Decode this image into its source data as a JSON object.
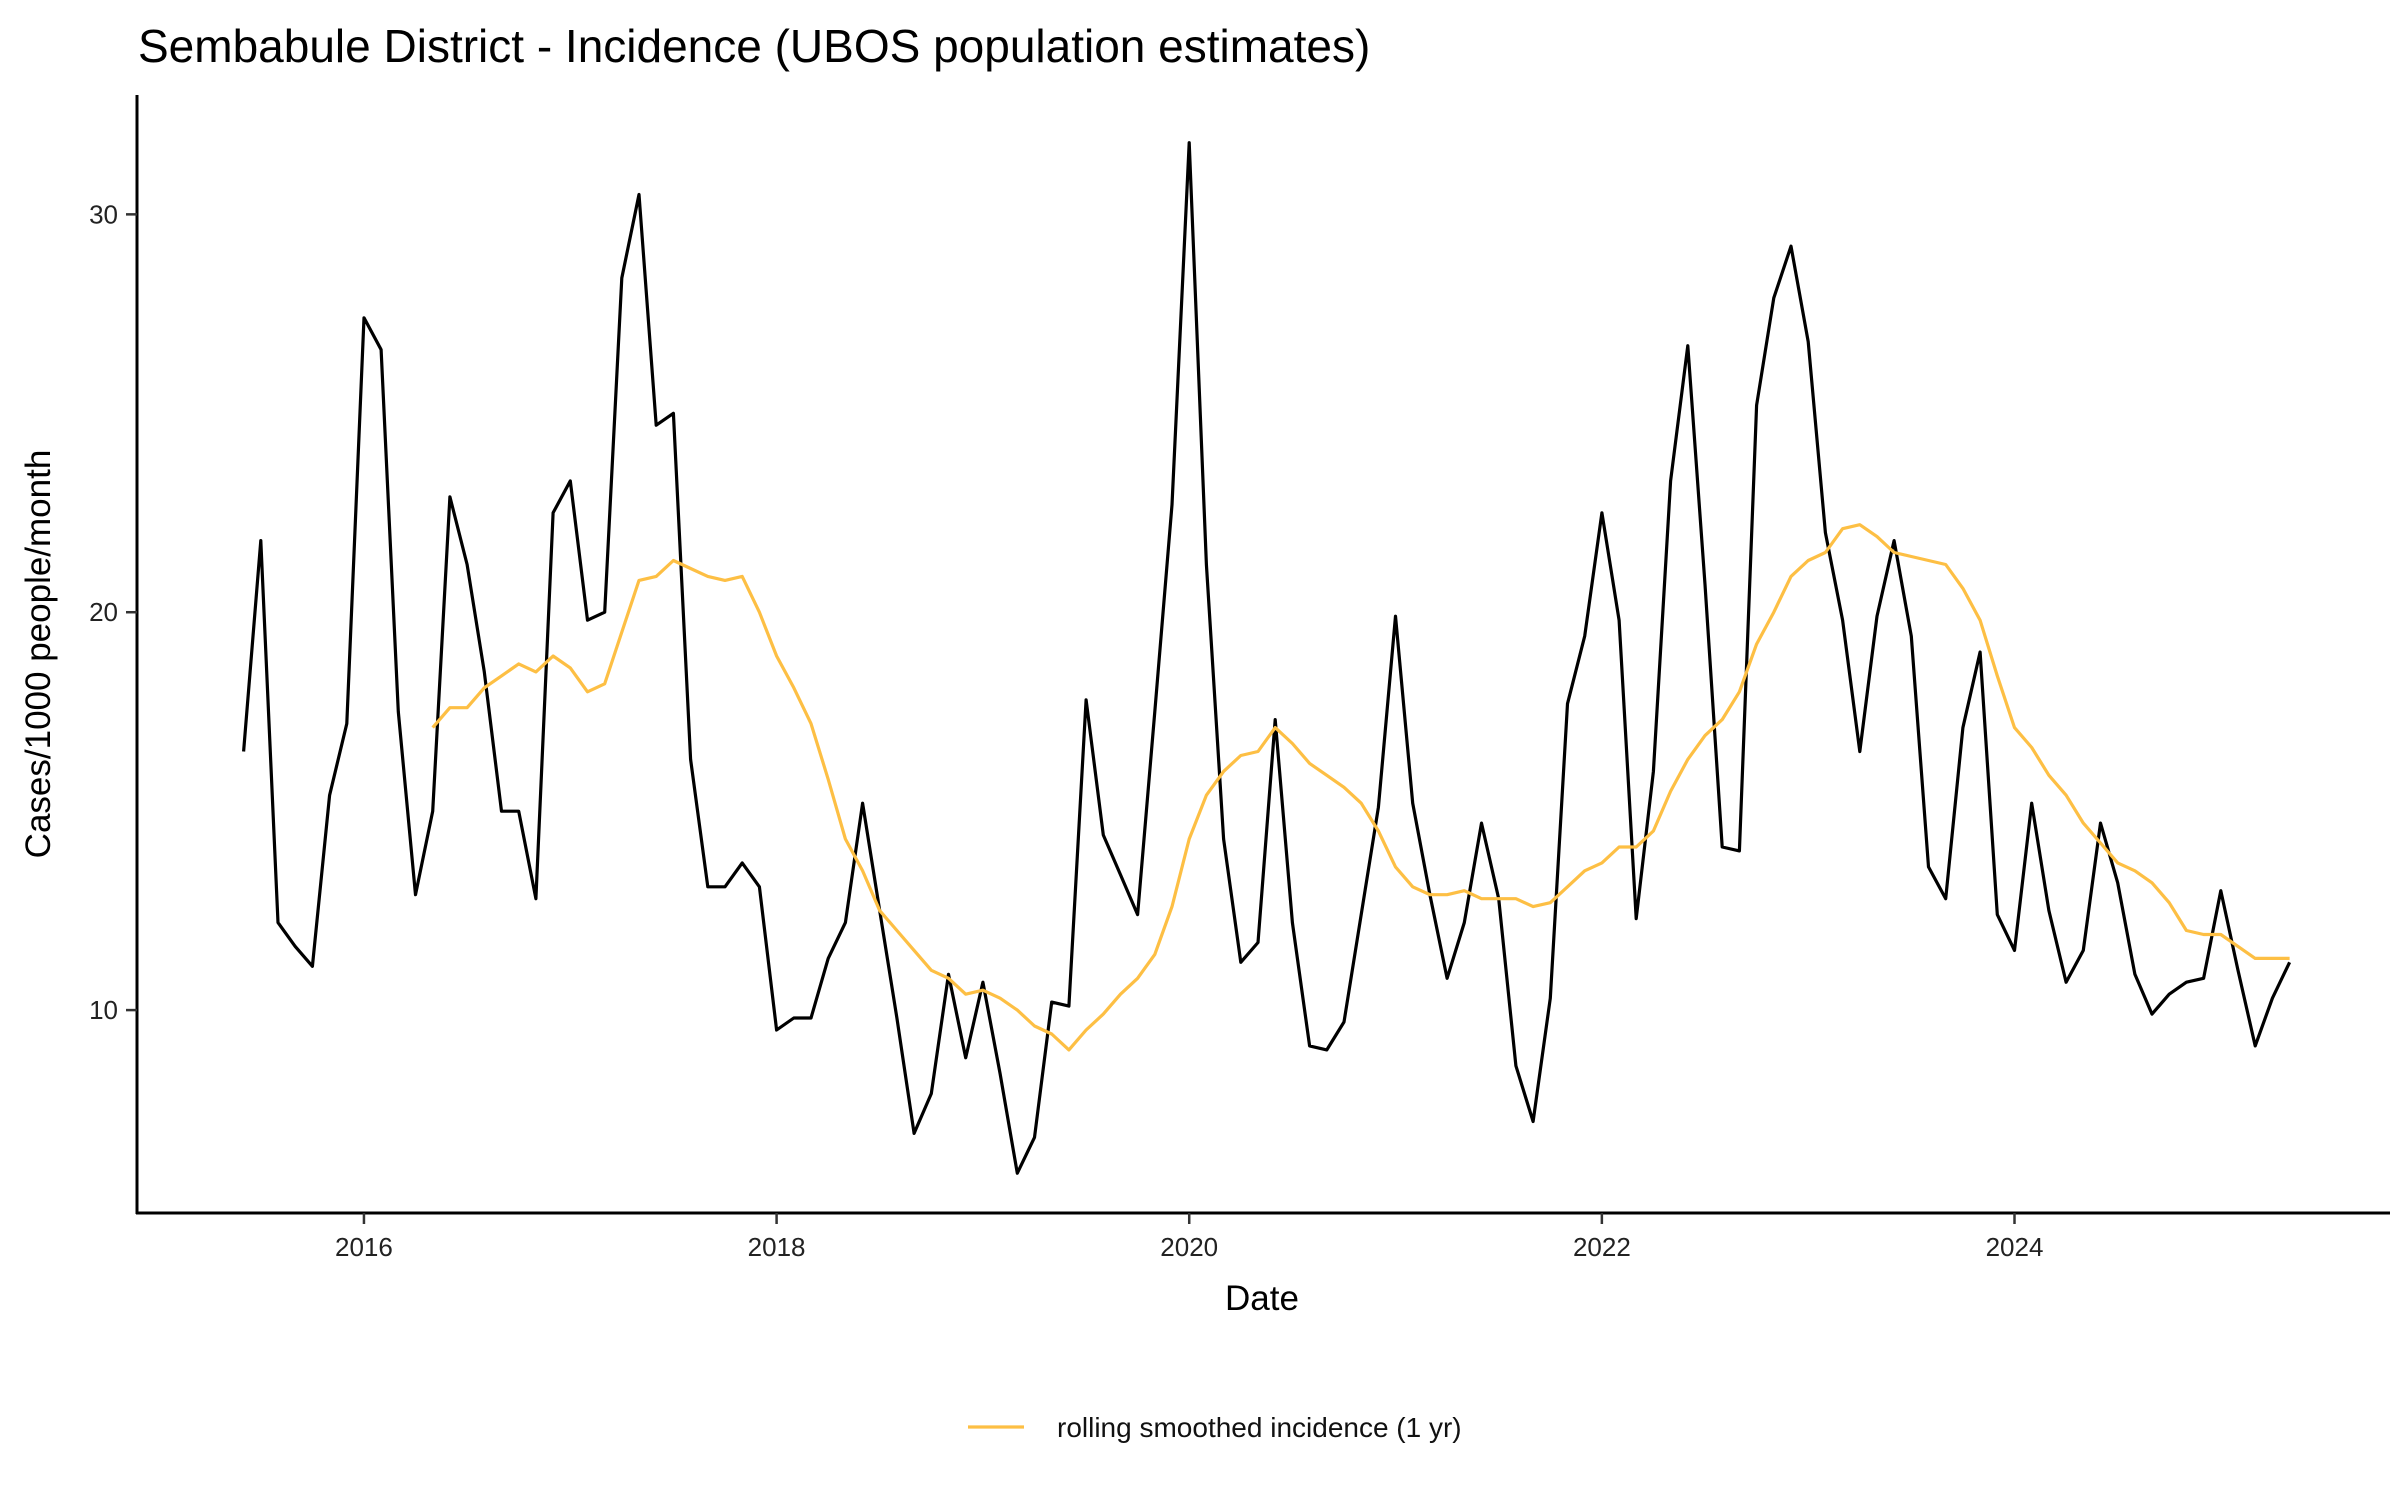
{
  "chart_data": {
    "type": "line",
    "title": "Sembabule District - Incidence (UBOS population estimates)",
    "xlabel": "Date",
    "ylabel": "Cases/1000 people/month",
    "xlim": [
      2014.9,
      2025.82
    ],
    "ylim": [
      4.9,
      33.0
    ],
    "x_ticks": [
      2016,
      2018,
      2020,
      2022,
      2024
    ],
    "y_ticks": [
      10,
      20,
      30
    ],
    "grid": false,
    "legend_position": "bottom",
    "colors": {
      "incidence": "#000000",
      "smoothed": "#FDBF44"
    },
    "series": [
      {
        "name": "incidence",
        "in_legend": false,
        "start": [
          2015,
          6
        ],
        "values": [
          16.5,
          21.8,
          12.2,
          11.6,
          11.1,
          15.4,
          17.2,
          27.4,
          26.6,
          17.5,
          12.9,
          15.0,
          22.9,
          21.2,
          18.5,
          15.0,
          15.0,
          12.8,
          22.5,
          23.3,
          19.8,
          20.0,
          28.4,
          30.5,
          24.7,
          25.0,
          16.3,
          13.1,
          13.1,
          13.7,
          13.1,
          9.5,
          9.8,
          9.8,
          11.3,
          12.2,
          15.2,
          12.5,
          9.8,
          6.9,
          7.9,
          10.9,
          8.8,
          10.7,
          8.4,
          5.9,
          6.8,
          10.2,
          10.1,
          17.8,
          14.4,
          13.4,
          12.4,
          17.5,
          22.7,
          31.8,
          21.2,
          14.3,
          11.2,
          11.7,
          17.3,
          12.2,
          9.1,
          9.0,
          9.7,
          12.4,
          15.1,
          19.9,
          15.2,
          12.9,
          10.8,
          12.2,
          14.7,
          12.8,
          8.6,
          7.2,
          10.3,
          17.7,
          19.4,
          22.5,
          19.8,
          12.3,
          16.0,
          23.3,
          26.7,
          20.7,
          14.1,
          14.0,
          25.2,
          27.9,
          29.2,
          26.8,
          22.0,
          19.8,
          16.5,
          19.9,
          21.8,
          19.4,
          13.6,
          12.8,
          17.1,
          19.0,
          12.4,
          11.5,
          15.2,
          12.5,
          10.7,
          11.5,
          14.7,
          13.2,
          10.9,
          9.9,
          10.4,
          10.7,
          10.8,
          13.0,
          11.0,
          9.1,
          10.3,
          11.2
        ]
      },
      {
        "name": "rolling smoothed incidence (1 yr)",
        "in_legend": true,
        "start": [
          2016,
          5
        ],
        "values": [
          17.1,
          17.6,
          17.6,
          18.1,
          18.4,
          18.7,
          18.5,
          18.9,
          18.6,
          18.0,
          18.2,
          19.5,
          20.8,
          20.9,
          21.3,
          21.1,
          20.9,
          20.8,
          20.9,
          20.0,
          18.9,
          18.1,
          17.2,
          15.8,
          14.3,
          13.5,
          12.5,
          12.0,
          11.5,
          11.0,
          10.8,
          10.4,
          10.5,
          10.3,
          10.0,
          9.6,
          9.4,
          9.0,
          9.5,
          9.9,
          10.4,
          10.8,
          11.4,
          12.6,
          14.3,
          15.4,
          16.0,
          16.4,
          16.5,
          17.1,
          16.7,
          16.2,
          15.9,
          15.6,
          15.2,
          14.5,
          13.6,
          13.1,
          12.9,
          12.9,
          13.0,
          12.8,
          12.8,
          12.8,
          12.6,
          12.7,
          13.1,
          13.5,
          13.7,
          14.1,
          14.1,
          14.5,
          15.5,
          16.3,
          16.9,
          17.3,
          18.0,
          19.2,
          20.0,
          20.9,
          21.3,
          21.5,
          22.1,
          22.2,
          21.9,
          21.5,
          21.4,
          21.3,
          21.2,
          20.6,
          19.8,
          18.4,
          17.1,
          16.6,
          15.9,
          15.4,
          14.7,
          14.2,
          13.7,
          13.5,
          13.2,
          12.7,
          12.0,
          11.9,
          11.9,
          11.6,
          11.3,
          11.3,
          11.3
        ]
      }
    ]
  }
}
